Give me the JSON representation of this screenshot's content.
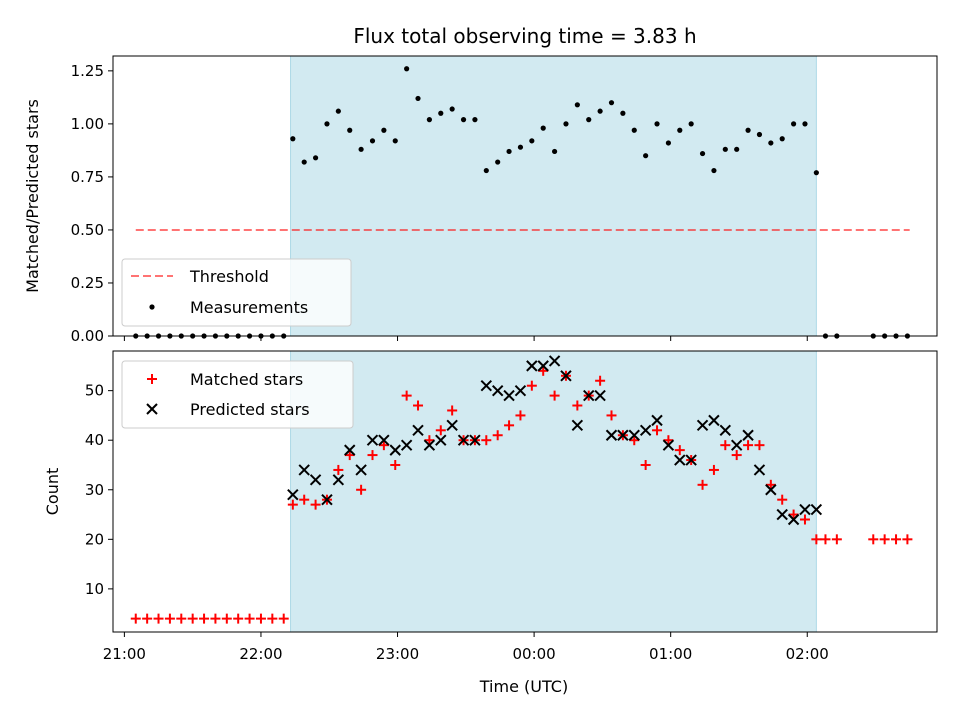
{
  "title": "Flux total observing time = 3.83 h",
  "colors": {
    "shade": "#add8e6",
    "threshold": "#ff0000",
    "measurement": "#000000",
    "matched": "#ff0000",
    "predicted": "#000000"
  },
  "chart_data": [
    {
      "type": "scatter",
      "ylabel": "Matched/Predicted stars",
      "ylim": [
        0,
        1.32
      ],
      "xlim": [
        "20:55",
        "02:57"
      ],
      "yticks": [
        "0.00",
        "0.25",
        "0.50",
        "0.75",
        "1.00",
        "1.25"
      ],
      "shaded_interval": [
        "22:13",
        "02:04"
      ],
      "legend_position": "lower-left",
      "series": [
        {
          "name": "Threshold",
          "style": "dashed-line",
          "x": [
            "21:05",
            "02:45"
          ],
          "y": [
            0.5,
            0.5
          ]
        },
        {
          "name": "Measurements",
          "style": "dots",
          "x": [
            "21:05",
            "21:10",
            "21:15",
            "21:20",
            "21:25",
            "21:30",
            "21:35",
            "21:40",
            "21:45",
            "21:50",
            "21:55",
            "22:00",
            "22:05",
            "22:10",
            "22:14",
            "22:19",
            "22:24",
            "22:29",
            "22:34",
            "22:39",
            "22:44",
            "22:49",
            "22:54",
            "22:59",
            "23:04",
            "23:09",
            "23:14",
            "23:19",
            "23:24",
            "23:29",
            "23:34",
            "23:39",
            "23:44",
            "23:49",
            "23:54",
            "23:59",
            "00:04",
            "00:09",
            "00:14",
            "00:19",
            "00:24",
            "00:29",
            "00:34",
            "00:39",
            "00:44",
            "00:49",
            "00:54",
            "00:59",
            "01:04",
            "01:09",
            "01:14",
            "01:19",
            "01:24",
            "01:29",
            "01:34",
            "01:39",
            "01:44",
            "01:49",
            "01:54",
            "01:59",
            "02:04",
            "02:08",
            "02:13",
            "02:29",
            "02:34",
            "02:39",
            "02:44"
          ],
          "y": [
            0,
            0,
            0,
            0,
            0,
            0,
            0,
            0,
            0,
            0,
            0,
            0,
            0,
            0,
            0.93,
            0.82,
            0.84,
            1.0,
            1.06,
            0.97,
            0.88,
            0.92,
            0.97,
            0.92,
            1.26,
            1.12,
            1.02,
            1.05,
            1.07,
            1.02,
            1.02,
            0.78,
            0.82,
            0.87,
            0.89,
            0.92,
            0.98,
            0.87,
            1.0,
            1.09,
            1.02,
            1.06,
            1.1,
            1.05,
            0.97,
            0.85,
            1.0,
            0.91,
            0.97,
            1.0,
            0.86,
            0.78,
            0.88,
            0.88,
            0.97,
            0.95,
            0.91,
            0.93,
            1.0,
            1.0,
            0.77,
            0,
            0,
            0,
            0,
            0,
            0
          ]
        }
      ]
    },
    {
      "type": "scatter",
      "xlabel": "Time (UTC)",
      "ylabel": "Count",
      "ylim": [
        1.3,
        58
      ],
      "xlim": [
        "20:55",
        "02:57"
      ],
      "yticks": [
        "10",
        "20",
        "30",
        "40",
        "50"
      ],
      "xticks": [
        "21:00",
        "22:00",
        "23:00",
        "00:00",
        "01:00",
        "02:00"
      ],
      "shaded_interval": [
        "22:13",
        "02:04"
      ],
      "legend_position": "upper-left",
      "series": [
        {
          "name": "Matched stars",
          "style": "plus",
          "x": [
            "21:05",
            "21:10",
            "21:15",
            "21:20",
            "21:25",
            "21:30",
            "21:35",
            "21:40",
            "21:45",
            "21:50",
            "21:55",
            "22:00",
            "22:05",
            "22:10",
            "22:14",
            "22:19",
            "22:24",
            "22:29",
            "22:34",
            "22:39",
            "22:44",
            "22:49",
            "22:54",
            "22:59",
            "23:04",
            "23:09",
            "23:14",
            "23:19",
            "23:24",
            "23:29",
            "23:34",
            "23:39",
            "23:44",
            "23:49",
            "23:54",
            "23:59",
            "00:04",
            "00:09",
            "00:14",
            "00:19",
            "00:24",
            "00:29",
            "00:34",
            "00:39",
            "00:44",
            "00:49",
            "00:54",
            "00:59",
            "01:04",
            "01:09",
            "01:14",
            "01:19",
            "01:24",
            "01:29",
            "01:34",
            "01:39",
            "01:44",
            "01:49",
            "01:54",
            "01:59",
            "02:04",
            "02:08",
            "02:13",
            "02:29",
            "02:34",
            "02:39",
            "02:44"
          ],
          "y": [
            4,
            4,
            4,
            4,
            4,
            4,
            4,
            4,
            4,
            4,
            4,
            4,
            4,
            4,
            27,
            28,
            27,
            28,
            34,
            37,
            30,
            37,
            39,
            35,
            49,
            47,
            40,
            42,
            46,
            40,
            40,
            40,
            41,
            43,
            45,
            51,
            54,
            49,
            53,
            47,
            49,
            52,
            45,
            41,
            40,
            35,
            42,
            40,
            38,
            36,
            31,
            34,
            39,
            37,
            39,
            39,
            31,
            28,
            25,
            24,
            20,
            20,
            20,
            20,
            20,
            20,
            20
          ]
        },
        {
          "name": "Predicted stars",
          "style": "x",
          "x": [
            "22:14",
            "22:19",
            "22:24",
            "22:29",
            "22:34",
            "22:39",
            "22:44",
            "22:49",
            "22:54",
            "22:59",
            "23:04",
            "23:09",
            "23:14",
            "23:19",
            "23:24",
            "23:29",
            "23:34",
            "23:39",
            "23:44",
            "23:49",
            "23:54",
            "23:59",
            "00:04",
            "00:09",
            "00:14",
            "00:19",
            "00:24",
            "00:29",
            "00:34",
            "00:39",
            "00:44",
            "00:49",
            "00:54",
            "00:59",
            "01:04",
            "01:09",
            "01:14",
            "01:19",
            "01:24",
            "01:29",
            "01:34",
            "01:39",
            "01:44",
            "01:49",
            "01:54",
            "01:59",
            "02:04"
          ],
          "y": [
            29,
            34,
            32,
            28,
            32,
            38,
            34,
            40,
            40,
            38,
            39,
            42,
            39,
            40,
            43,
            40,
            40,
            51,
            50,
            49,
            50,
            55,
            55,
            56,
            53,
            43,
            49,
            49,
            41,
            41,
            41,
            42,
            44,
            39,
            36,
            36,
            43,
            44,
            42,
            39,
            41,
            34,
            30,
            25,
            24,
            26,
            26
          ]
        }
      ]
    }
  ]
}
